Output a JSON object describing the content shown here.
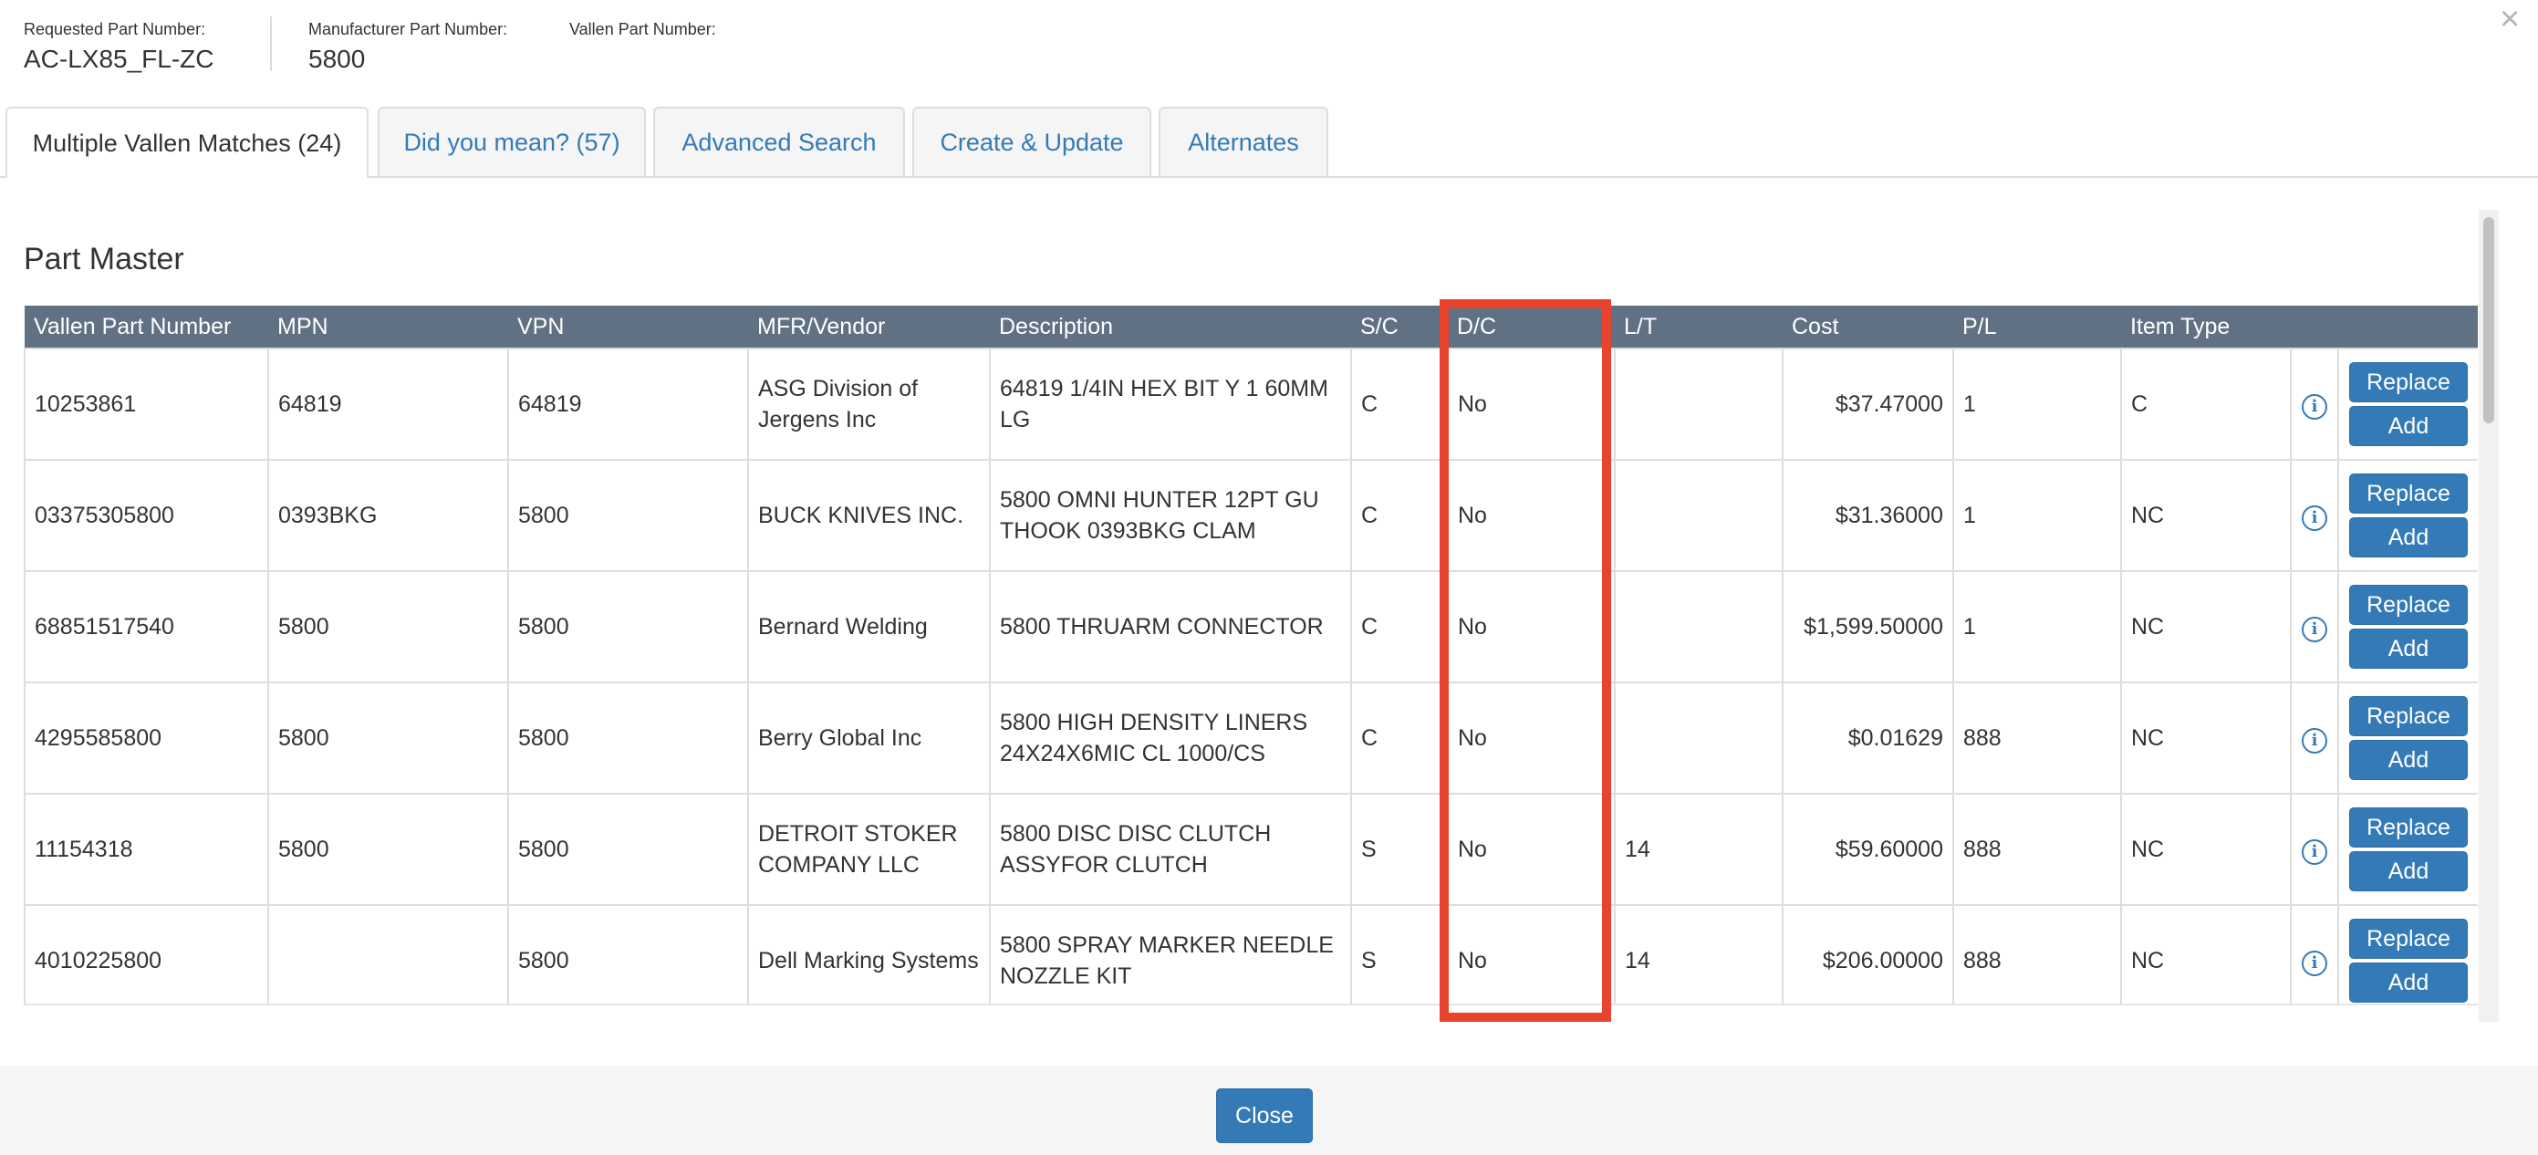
{
  "header": {
    "requested_label": "Requested Part Number:",
    "requested_value": "AC-LX85_FL-ZC",
    "manufacturer_label": "Manufacturer Part Number:",
    "manufacturer_value": "5800",
    "vallen_label": "Vallen Part Number:",
    "vallen_value": "",
    "close_glyph": "×"
  },
  "tabs": [
    {
      "label": "Multiple Vallen Matches (24)",
      "active": true
    },
    {
      "label": "Did you mean? (57)"
    },
    {
      "label": "Advanced Search"
    },
    {
      "label": "Create & Update"
    },
    {
      "label": "Alternates"
    }
  ],
  "section_title": "Part Master",
  "table": {
    "columns": [
      "Vallen Part Number",
      "MPN",
      "VPN",
      "MFR/Vendor",
      "Description",
      "S/C",
      "D/C",
      "L/T",
      "Cost",
      "P/L",
      "Item Type",
      "",
      ""
    ],
    "rows": [
      {
        "vpn_vallen": "10253861",
        "mpn": "64819",
        "vpn": "64819",
        "vendor": "ASG Division of Jergens Inc",
        "description": "64819 1/4IN HEX BIT Y 1 60MM LG",
        "sc": "C",
        "dc": "No",
        "lt": "",
        "cost": "$37.47000",
        "pl": "1",
        "item_type": "C"
      },
      {
        "vpn_vallen": "03375305800",
        "mpn": "0393BKG",
        "vpn": "5800",
        "vendor": "BUCK KNIVES INC.",
        "description": "5800 OMNI HUNTER 12PT GU THOOK 0393BKG CLAM",
        "sc": "C",
        "dc": "No",
        "lt": "",
        "cost": "$31.36000",
        "pl": "1",
        "item_type": "NC"
      },
      {
        "vpn_vallen": "68851517540",
        "mpn": "5800",
        "vpn": "5800",
        "vendor": "Bernard Welding",
        "description": "5800 THRUARM CONNECTOR",
        "sc": "C",
        "dc": "No",
        "lt": "",
        "cost": "$1,599.50000",
        "pl": "1",
        "item_type": "NC"
      },
      {
        "vpn_vallen": "4295585800",
        "mpn": "5800",
        "vpn": "5800",
        "vendor": "Berry Global Inc",
        "description": "5800 HIGH DENSITY LINERS 24X24X6MIC CL 1000/CS",
        "sc": "C",
        "dc": "No",
        "lt": "",
        "cost": "$0.01629",
        "pl": "888",
        "item_type": "NC"
      },
      {
        "vpn_vallen": "11154318",
        "mpn": "5800",
        "vpn": "5800",
        "vendor": "DETROIT STOKER COMPANY LLC",
        "description": "5800 DISC DISC CLUTCH ASSYFOR CLUTCH",
        "sc": "S",
        "dc": "No",
        "lt": "14",
        "cost": "$59.60000",
        "pl": "888",
        "item_type": "NC"
      },
      {
        "vpn_vallen": "4010225800",
        "mpn": "",
        "vpn": "5800",
        "vendor": "Dell Marking Systems",
        "description": "5800 SPRAY MARKER NEEDLE NOZZLE KIT",
        "sc": "S",
        "dc": "No",
        "lt": "14",
        "cost": "$206.00000",
        "pl": "888",
        "item_type": "NC"
      }
    ],
    "replace_label": "Replace",
    "add_label": "Add",
    "info_glyph": "i"
  },
  "footer": {
    "close_label": "Close"
  },
  "colors": {
    "accent": "#337ab7",
    "header_bg": "#5f7182",
    "highlight": "#e8432d"
  }
}
